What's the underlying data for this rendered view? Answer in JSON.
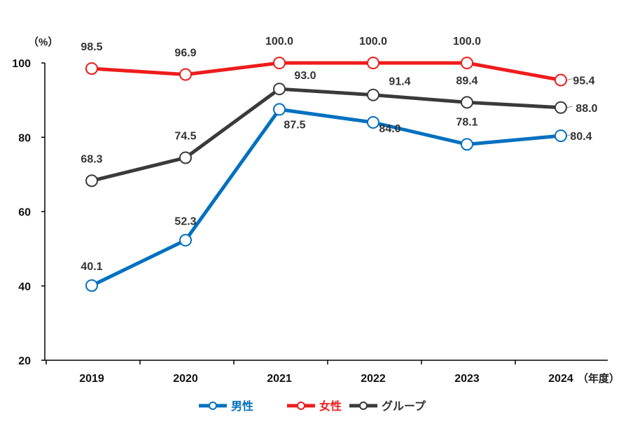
{
  "chart_data": {
    "type": "line",
    "x": [
      "2019",
      "2020",
      "2021",
      "2022",
      "2023",
      "2024"
    ],
    "ylim": [
      20,
      100
    ],
    "yticks": [
      20,
      40,
      60,
      80,
      100
    ],
    "y_unit": "（%）",
    "x_unit": "（年度）",
    "grid": false,
    "legend_position": "bottom",
    "series": [
      {
        "name": "男性",
        "color": "#0070C0",
        "values": [
          40.1,
          52.3,
          87.5,
          84.0,
          78.1,
          80.4
        ],
        "labels": [
          "40.1",
          "52.3",
          "87.5",
          "84.0",
          "78.1",
          "80.4"
        ]
      },
      {
        "name": "女性",
        "color": "#EE1C1C",
        "values": [
          98.5,
          96.9,
          100.0,
          100.0,
          100.0,
          95.4
        ],
        "labels": [
          "98.5",
          "96.9",
          "100.0",
          "100.0",
          "100.0",
          "95.4"
        ]
      },
      {
        "name": "グループ",
        "color": "#3A3A3A",
        "values": [
          68.3,
          74.5,
          93.0,
          91.4,
          89.4,
          88.0
        ],
        "labels": [
          "68.3",
          "74.5",
          "93.0",
          "91.4",
          "89.4",
          "88.0"
        ]
      }
    ]
  }
}
